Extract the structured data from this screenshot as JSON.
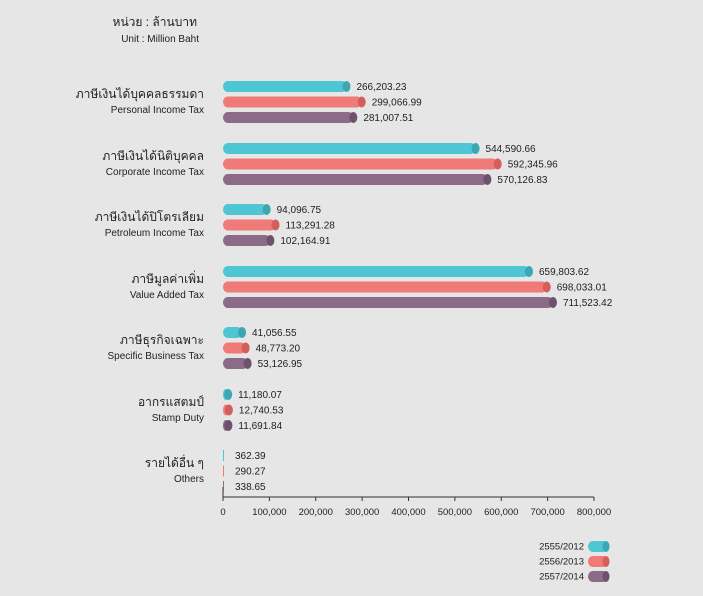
{
  "unit": {
    "label_th": "หน่วย : ล้านบาท",
    "label_en": "Unit : Million Baht"
  },
  "chart_data": {
    "type": "bar",
    "orientation": "horizontal",
    "categories": [
      {
        "name_th": "ภาษีเงินได้บุคคลธรรมดา",
        "name_en": "Personal Income Tax"
      },
      {
        "name_th": "ภาษีเงินได้นิติบุคคล",
        "name_en": "Corporate Income Tax"
      },
      {
        "name_th": "ภาษีเงินได้ปิโตรเลียม",
        "name_en": "Petroleum Income Tax"
      },
      {
        "name_th": "ภาษีมูลค่าเพิ่ม",
        "name_en": "Value Added Tax"
      },
      {
        "name_th": "ภาษีธุรกิจเฉพาะ",
        "name_en": "Specific Business Tax"
      },
      {
        "name_th": "อากรแสตมป์",
        "name_en": "Stamp Duty"
      },
      {
        "name_th": "รายได้อื่น ๆ",
        "name_en": "Others"
      }
    ],
    "series": [
      {
        "name": "2555/2012",
        "color": "#4fc6d3",
        "values": [
          266203.23,
          544590.66,
          94096.75,
          659803.62,
          41056.55,
          11180.07,
          362.39
        ],
        "labels": [
          "266,203.23",
          "544,590.66",
          "94,096.75",
          "659,803.62",
          "41,056.55",
          "11,180.07",
          "362.39"
        ]
      },
      {
        "name": "2556/2013",
        "color": "#ef7a78",
        "values": [
          299066.99,
          592345.96,
          113291.28,
          698033.01,
          48773.2,
          12740.53,
          290.27
        ],
        "labels": [
          "299,066.99",
          "592,345.96",
          "113,291.28",
          "698,033.01",
          "48,773.20",
          "12,740.53",
          "290.27"
        ]
      },
      {
        "name": "2557/2014",
        "color": "#8b6b88",
        "values": [
          281007.51,
          570126.83,
          102164.91,
          711523.42,
          53126.95,
          11691.84,
          338.65
        ],
        "labels": [
          "281,007.51",
          "570,126.83",
          "102,164.91",
          "711,523.42",
          "53,126.95",
          "11,691.84",
          "338.65"
        ]
      }
    ],
    "x_ticks": [
      "0",
      "100,000",
      "200,000",
      "300,000",
      "400,000",
      "500,000",
      "600,000",
      "700,000",
      "800,000"
    ],
    "xlim": [
      0,
      800000
    ],
    "grid": false,
    "legend_position": "bottom-right"
  }
}
